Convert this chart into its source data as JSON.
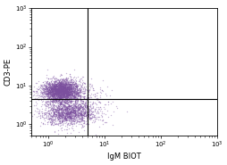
{
  "xlabel": "IgM BIOT",
  "ylabel": "CD3-PE",
  "xlim": [
    0.5,
    1000
  ],
  "ylim": [
    0.5,
    1000
  ],
  "gate_x": 5.0,
  "gate_y": 4.5,
  "dot_color": "#7B4F9E",
  "dot_alpha": 0.4,
  "dot_size": 1.0,
  "background_color": "#ffffff",
  "cluster1_x_log_mean": 0.5,
  "cluster1_x_log_std": 0.38,
  "cluster1_y_log_mean": 2.0,
  "cluster1_y_log_std": 0.32,
  "cluster1_n": 2800,
  "cluster2_x_log_mean": 0.85,
  "cluster2_x_log_std": 0.5,
  "cluster2_y_log_mean": 0.65,
  "cluster2_y_log_std": 0.32,
  "cluster2_n": 1400,
  "scatter_n": 600,
  "scatter_x_log_mean": 1.0,
  "scatter_x_log_std": 0.7,
  "scatter_y_log_mean": 1.3,
  "scatter_y_log_std": 0.7,
  "x_ticks": [
    1,
    10,
    100,
    1000
  ],
  "x_tick_labels": [
    "10$^0$",
    "10$^1$",
    "10$^2$",
    "10$^3$"
  ],
  "y_ticks": [
    1,
    10,
    100,
    1000
  ],
  "y_tick_labels": [
    "10$^0$",
    "10$^1$",
    "10$^2$",
    "10$^3$"
  ],
  "seed": 42,
  "figwidth": 2.55,
  "figheight": 1.85,
  "dpi": 100
}
